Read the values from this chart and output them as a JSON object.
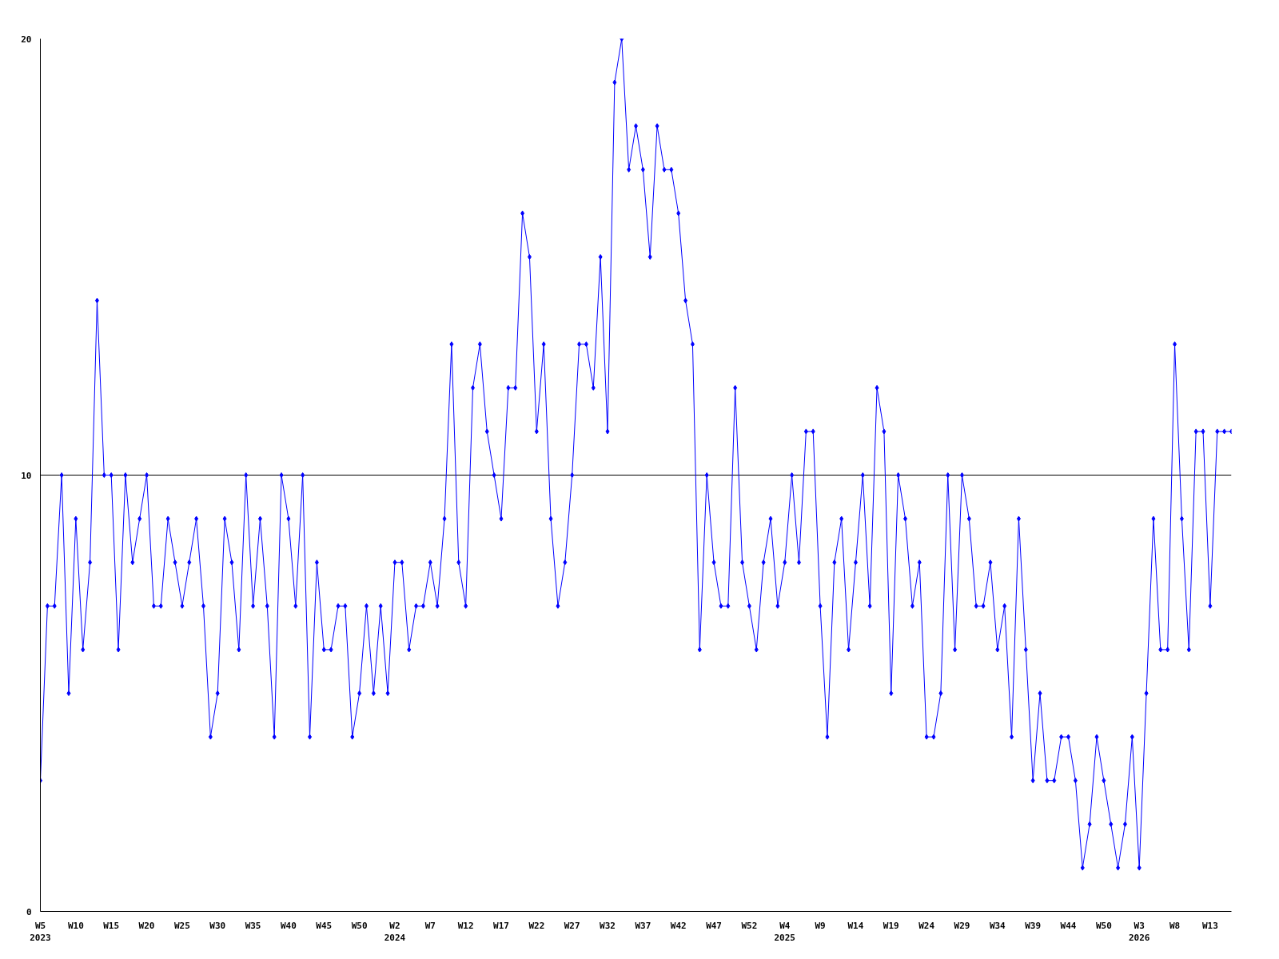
{
  "chart_data": {
    "type": "line",
    "color": "#0000ff",
    "marker": "diamond",
    "grid": "y",
    "ylim": [
      0,
      20
    ],
    "yticks": [
      0,
      10,
      20
    ],
    "categories": [
      "W5\n2023",
      null,
      null,
      null,
      null,
      "W10",
      null,
      null,
      null,
      null,
      "W15",
      null,
      null,
      null,
      null,
      "W20",
      null,
      null,
      null,
      null,
      "W25",
      null,
      null,
      null,
      null,
      "W30",
      null,
      null,
      null,
      null,
      "W35",
      null,
      null,
      null,
      null,
      "W40",
      null,
      null,
      null,
      null,
      "W45",
      null,
      null,
      null,
      null,
      "W50",
      null,
      null,
      null,
      null,
      "W2\n2024",
      null,
      null,
      null,
      null,
      "W7",
      null,
      null,
      null,
      null,
      "W12",
      null,
      null,
      null,
      null,
      "W17",
      null,
      null,
      null,
      null,
      "W22",
      null,
      null,
      null,
      null,
      "W27",
      null,
      null,
      null,
      null,
      "W32",
      null,
      null,
      null,
      null,
      "W37",
      null,
      null,
      null,
      null,
      "W42",
      null,
      null,
      null,
      null,
      "W47",
      null,
      null,
      null,
      null,
      "W52",
      null,
      null,
      null,
      null,
      "W4\n2025",
      null,
      null,
      null,
      null,
      "W9",
      null,
      null,
      null,
      null,
      "W14",
      null,
      null,
      null,
      null,
      "W19",
      null,
      null,
      null,
      null,
      "W24",
      null,
      null,
      null,
      null,
      "W29",
      null,
      null,
      null,
      null,
      "W34",
      null,
      null,
      null,
      null,
      "W39",
      null,
      null,
      null,
      null,
      "W44",
      null,
      null,
      null,
      null,
      "W50",
      null,
      null,
      null,
      null,
      "W3\n2026",
      null,
      null,
      null,
      null,
      "W8",
      null,
      null,
      null,
      null,
      "W13",
      null,
      null,
      null
    ],
    "values": [
      3,
      7,
      7,
      10,
      5,
      9,
      6,
      8,
      14,
      10,
      10,
      6,
      10,
      8,
      9,
      10,
      7,
      7,
      9,
      8,
      7,
      8,
      9,
      7,
      4,
      5,
      9,
      8,
      6,
      10,
      7,
      9,
      7,
      4,
      10,
      9,
      7,
      10,
      4,
      8,
      6,
      6,
      7,
      7,
      4,
      5,
      7,
      5,
      7,
      5,
      8,
      8,
      6,
      7,
      7,
      8,
      7,
      9,
      13,
      8,
      7,
      12,
      13,
      11,
      10,
      9,
      12,
      12,
      16,
      15,
      11,
      13,
      9,
      7,
      8,
      10,
      13,
      13,
      12,
      15,
      11,
      19,
      20,
      17,
      18,
      17,
      15,
      18,
      17,
      17,
      16,
      14,
      13,
      6,
      10,
      8,
      7,
      7,
      12,
      8,
      7,
      6,
      8,
      9,
      7,
      8,
      10,
      8,
      11,
      11,
      7,
      4,
      8,
      9,
      6,
      8,
      10,
      7,
      12,
      11,
      5,
      10,
      9,
      7,
      8,
      4,
      4,
      5,
      10,
      6,
      10,
      9,
      7,
      7,
      8,
      6,
      7,
      4,
      9,
      6,
      3,
      5,
      3,
      3,
      4,
      4,
      3,
      1,
      2,
      4,
      3,
      2,
      1,
      2,
      4,
      1,
      5,
      9,
      6,
      6,
      13,
      9,
      6,
      11,
      11,
      7,
      11,
      11,
      11
    ]
  }
}
